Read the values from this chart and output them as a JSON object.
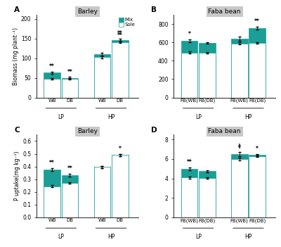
{
  "panel_A": {
    "title": "Barley",
    "label": "A",
    "ylabel": "Biomass (mg plant⁻¹)",
    "ylim": [
      0,
      210
    ],
    "yticks": [
      0,
      50,
      100,
      150,
      200
    ],
    "groups": [
      "LP",
      "HP"
    ],
    "categories": [
      "WB",
      "DB",
      "WB",
      "DB"
    ],
    "mix_values": [
      63,
      50,
      110,
      146
    ],
    "sole_values": [
      48,
      47,
      102,
      141
    ],
    "mix_errors": [
      3,
      2,
      3,
      3
    ],
    "sole_errors": [
      2,
      2,
      2,
      3
    ],
    "sig_mix": [
      "**",
      "**",
      "",
      "**"
    ],
    "sig_sole": [
      "",
      "",
      "",
      "**"
    ],
    "show_legend": true
  },
  "panel_B": {
    "title": "Faba bean",
    "label": "B",
    "ylabel": "",
    "ylim": [
      0,
      900
    ],
    "yticks": [
      0,
      200,
      400,
      600,
      800
    ],
    "groups": [
      "LP",
      "HP"
    ],
    "categories": [
      "FB(WB)",
      "FB(DB)",
      "FB(WB)",
      "FB(DB)"
    ],
    "mix_values": [
      620,
      595,
      640,
      755
    ],
    "sole_values": [
      490,
      490,
      590,
      595
    ],
    "mix_errors": [
      15,
      10,
      20,
      15
    ],
    "sole_errors": [
      10,
      8,
      15,
      10
    ],
    "sig_mix": [
      "*",
      "",
      "",
      "**"
    ],
    "sig_sole": [
      "",
      "",
      "",
      ""
    ],
    "show_legend": false
  },
  "panel_C": {
    "title": "Barley",
    "label": "C",
    "ylabel": "P uptake(mg kg⁻¹)",
    "ylim": [
      0,
      0.65
    ],
    "yticks": [
      0.0,
      0.1,
      0.2,
      0.3,
      0.4,
      0.5,
      0.6
    ],
    "groups": [
      "LP",
      "HP"
    ],
    "categories": [
      "WB",
      "DB",
      "WB",
      "DB"
    ],
    "mix_values": [
      0.375,
      0.33,
      0.395,
      0.49
    ],
    "sole_values": [
      0.245,
      0.27,
      0.395,
      0.49
    ],
    "mix_errors": [
      0.012,
      0.01,
      0.008,
      0.01
    ],
    "sole_errors": [
      0.008,
      0.007,
      0.007,
      0.008
    ],
    "sig_mix": [
      "**",
      "**",
      "",
      "*"
    ],
    "sig_sole": [
      "",
      "",
      "",
      ""
    ],
    "show_legend": false
  },
  "panel_D": {
    "title": "Faba bean",
    "label": "D",
    "ylabel": "",
    "ylim": [
      0,
      8.5
    ],
    "yticks": [
      0,
      2,
      4,
      6,
      8
    ],
    "groups": [
      "LP",
      "HP"
    ],
    "categories": [
      "FB(WB)",
      "FB(DB)",
      "FB(WB)",
      "FB(DB)"
    ],
    "mix_values": [
      5.0,
      4.75,
      6.5,
      6.4
    ],
    "sole_values": [
      4.1,
      4.05,
      6.0,
      6.3
    ],
    "mix_errors": [
      0.15,
      0.12,
      0.2,
      0.12
    ],
    "sole_errors": [
      0.1,
      0.1,
      0.12,
      0.1
    ],
    "sig_mix": [
      "**",
      "",
      "‡",
      "*"
    ],
    "sig_sole": [
      "",
      "",
      "",
      ""
    ],
    "show_legend": false
  },
  "mix_color": "#1a9e96",
  "sole_color": "#ffffff",
  "bar_edge_color": "#1a9e96",
  "title_bg_color": "#c8c8c8",
  "bar_width": 0.32,
  "group_centers": [
    0.42,
    1.38
  ]
}
